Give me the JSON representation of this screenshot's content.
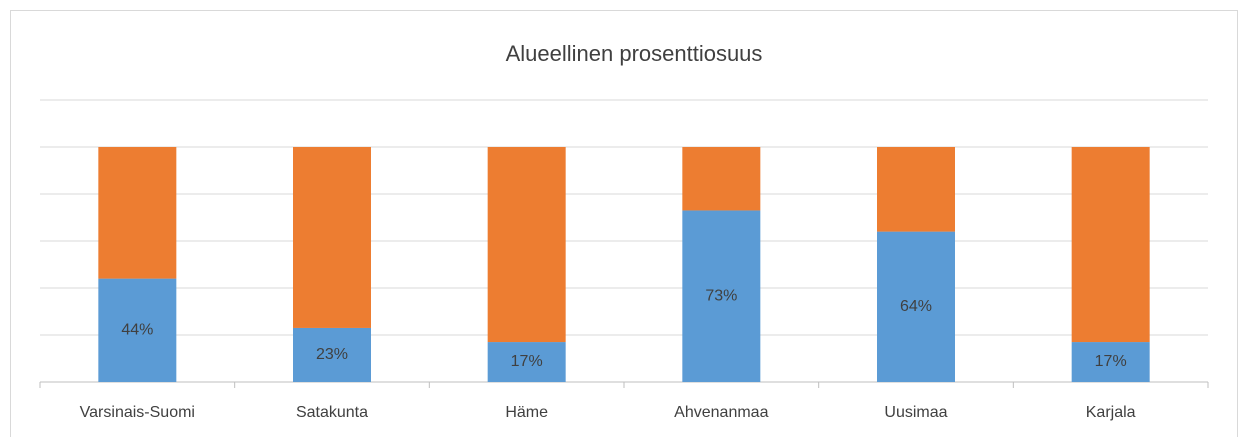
{
  "chart_data": {
    "type": "stacked_bar_100",
    "title": "Alueellinen prosenttiosuus",
    "categories": [
      "Varsinais-Suomi",
      "Satakunta",
      "Häme",
      "Ahvenanmaa",
      "Uusimaa",
      "Karjala"
    ],
    "series": [
      {
        "color": "#5b9bd5",
        "values": [
          44,
          23,
          17,
          73,
          64,
          17
        ],
        "value_labels": [
          "44%",
          "23%",
          "17%",
          "73%",
          "64%",
          "17%"
        ]
      },
      {
        "color": "#ed7d31",
        "values": [
          56,
          77,
          83,
          27,
          36,
          83
        ]
      }
    ],
    "ylim": [
      0,
      120
    ],
    "yticks": [
      0,
      20,
      40,
      60,
      80,
      100,
      120
    ],
    "grid": true
  }
}
